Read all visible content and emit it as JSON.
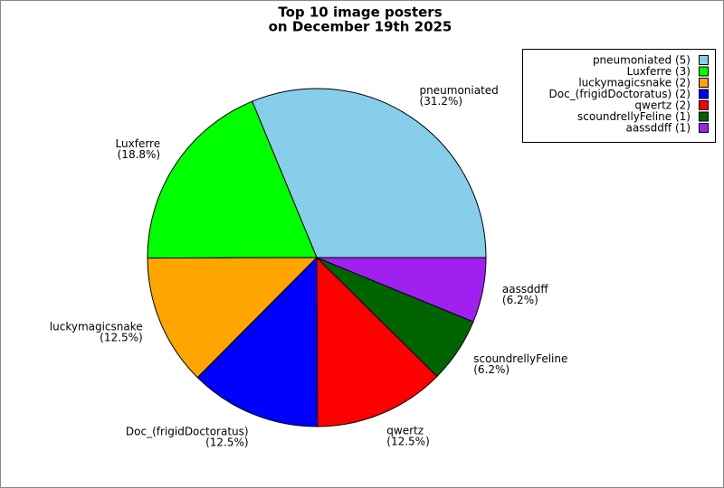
{
  "chart_data": {
    "type": "pie",
    "title": "Top 10 image posters",
    "subtitle": "on December 19th 2025",
    "categories": [
      "pneumoniated",
      "Luxferre",
      "luckymagicsnake",
      "Doc_(frigidDoctoratus)",
      "qwertz",
      "scoundrellyFeline",
      "aassddff"
    ],
    "values": [
      31.2,
      18.8,
      12.5,
      12.5,
      12.5,
      6.2,
      6.2
    ],
    "value_labels": [
      "(31.2%)",
      "(18.8%)",
      "(12.5%)",
      "(12.5%)",
      "(12.5%)",
      "(6.2%)",
      "(6.2%)"
    ],
    "legend_labels": [
      "pneumoniated (5)",
      "Luxferre (3)",
      "luckymagicsnake (2)",
      "Doc_(frigidDoctoratus) (2)",
      "qwertz (2)",
      "scoundrellyFeline (1)",
      "aassddff (1)"
    ],
    "colors": [
      "#87ceeb",
      "#00ff00",
      "#ffa500",
      "#0000ff",
      "#ff0000",
      "#006400",
      "#a020f0"
    ],
    "legend": "top-right"
  }
}
